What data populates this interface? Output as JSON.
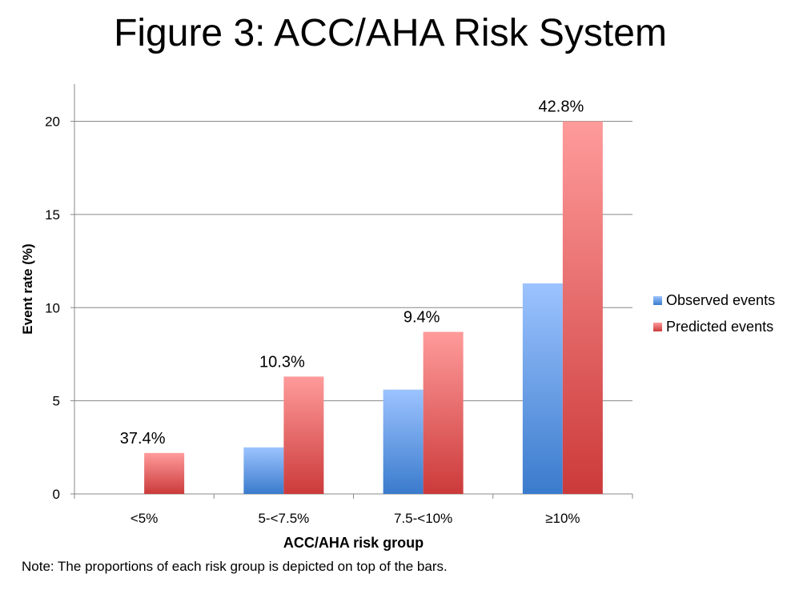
{
  "chart_data": {
    "type": "bar",
    "title": "Figure 3: ACC/AHA Risk System",
    "xlabel": "ACC/AHA risk group",
    "ylabel": "Event rate (%)",
    "ylim": [
      0,
      22
    ],
    "yticks": [
      0,
      5,
      10,
      15,
      20
    ],
    "grid": true,
    "legend_position": "right",
    "categories": [
      "<5%",
      "5-<7.5%",
      "7.5-<10%",
      "≥10%"
    ],
    "series": [
      {
        "name": "Observed events",
        "values": [
          0,
          2.5,
          5.6,
          11.3
        ],
        "color_top": "#9cc3ff",
        "color_bottom": "#3a7bcc"
      },
      {
        "name": "Predicted events",
        "values": [
          2.2,
          6.3,
          8.7,
          20.0
        ],
        "color_top": "#ff9b9b",
        "color_bottom": "#cc3a3a"
      }
    ],
    "annotations": [
      "37.4%",
      "10.3%",
      "9.4%",
      "42.8%"
    ],
    "note": "Note: The proportions of each risk group is depicted on top of the bars."
  }
}
